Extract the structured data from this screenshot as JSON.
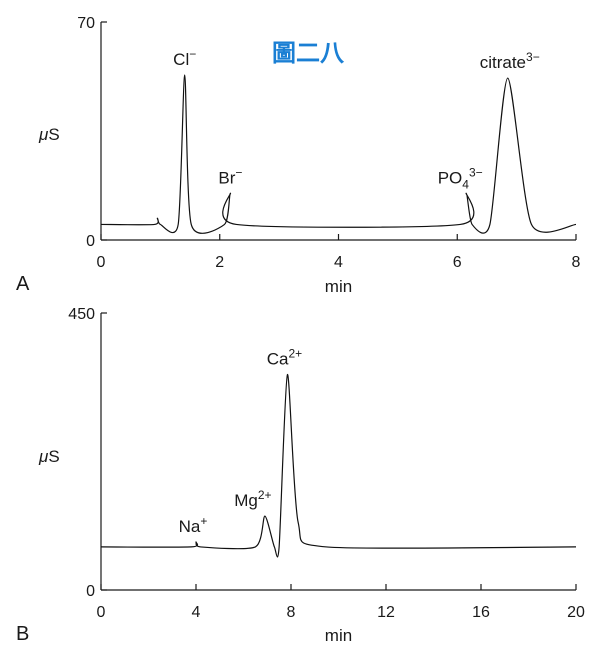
{
  "watermark": {
    "text": "圖二八",
    "color": "#1a7fd4"
  },
  "chart_data": [
    {
      "type": "line",
      "panel": "A",
      "title": "",
      "xlabel": "min",
      "ylabel": "μS",
      "xlim": [
        0,
        8
      ],
      "ylim": [
        0,
        70
      ],
      "xticks": [
        0,
        2,
        4,
        6,
        8
      ],
      "yticks": [
        0,
        70
      ],
      "baseline": 5,
      "x": [
        0,
        0.9,
        0.95,
        1.0,
        1.3,
        1.41,
        1.52,
        2.08,
        2.18,
        2.28,
        6.05,
        6.15,
        6.25,
        6.55,
        6.85,
        7.25,
        8.0
      ],
      "y": [
        5,
        5,
        7,
        5,
        5,
        53,
        5,
        5,
        15,
        5,
        5,
        15,
        5,
        5,
        52,
        5,
        5
      ],
      "peaks": [
        {
          "label": "Cl",
          "sup": "−",
          "x": 1.41,
          "y": 53
        },
        {
          "label": "Br",
          "sup": "−",
          "x": 2.18,
          "y": 15
        },
        {
          "label": "PO",
          "sub": "4",
          "sup": "3−",
          "x": 6.15,
          "y": 15
        },
        {
          "label": "citrate",
          "sup": "3−",
          "x": 6.85,
          "y": 52
        }
      ]
    },
    {
      "type": "line",
      "panel": "B",
      "title": "",
      "xlabel": "min",
      "ylabel": "μS",
      "xlim": [
        0,
        20
      ],
      "ylim": [
        0,
        450
      ],
      "xticks": [
        0,
        4,
        8,
        12,
        16,
        20
      ],
      "yticks": [
        0,
        450
      ],
      "baseline": 70,
      "x": [
        0,
        3.8,
        4.0,
        4.2,
        6.5,
        6.9,
        7.3,
        7.5,
        7.85,
        8.3,
        9.5,
        20
      ],
      "y": [
        70,
        70,
        78,
        70,
        70,
        120,
        70,
        70,
        350,
        110,
        70,
        70
      ],
      "peaks": [
        {
          "label": "Na",
          "sup": "+",
          "x": 4.0,
          "y": 78
        },
        {
          "label": "Mg",
          "sup": "2+",
          "x": 6.9,
          "y": 120
        },
        {
          "label": "Ca",
          "sup": "2+",
          "x": 7.85,
          "y": 350
        }
      ]
    }
  ]
}
